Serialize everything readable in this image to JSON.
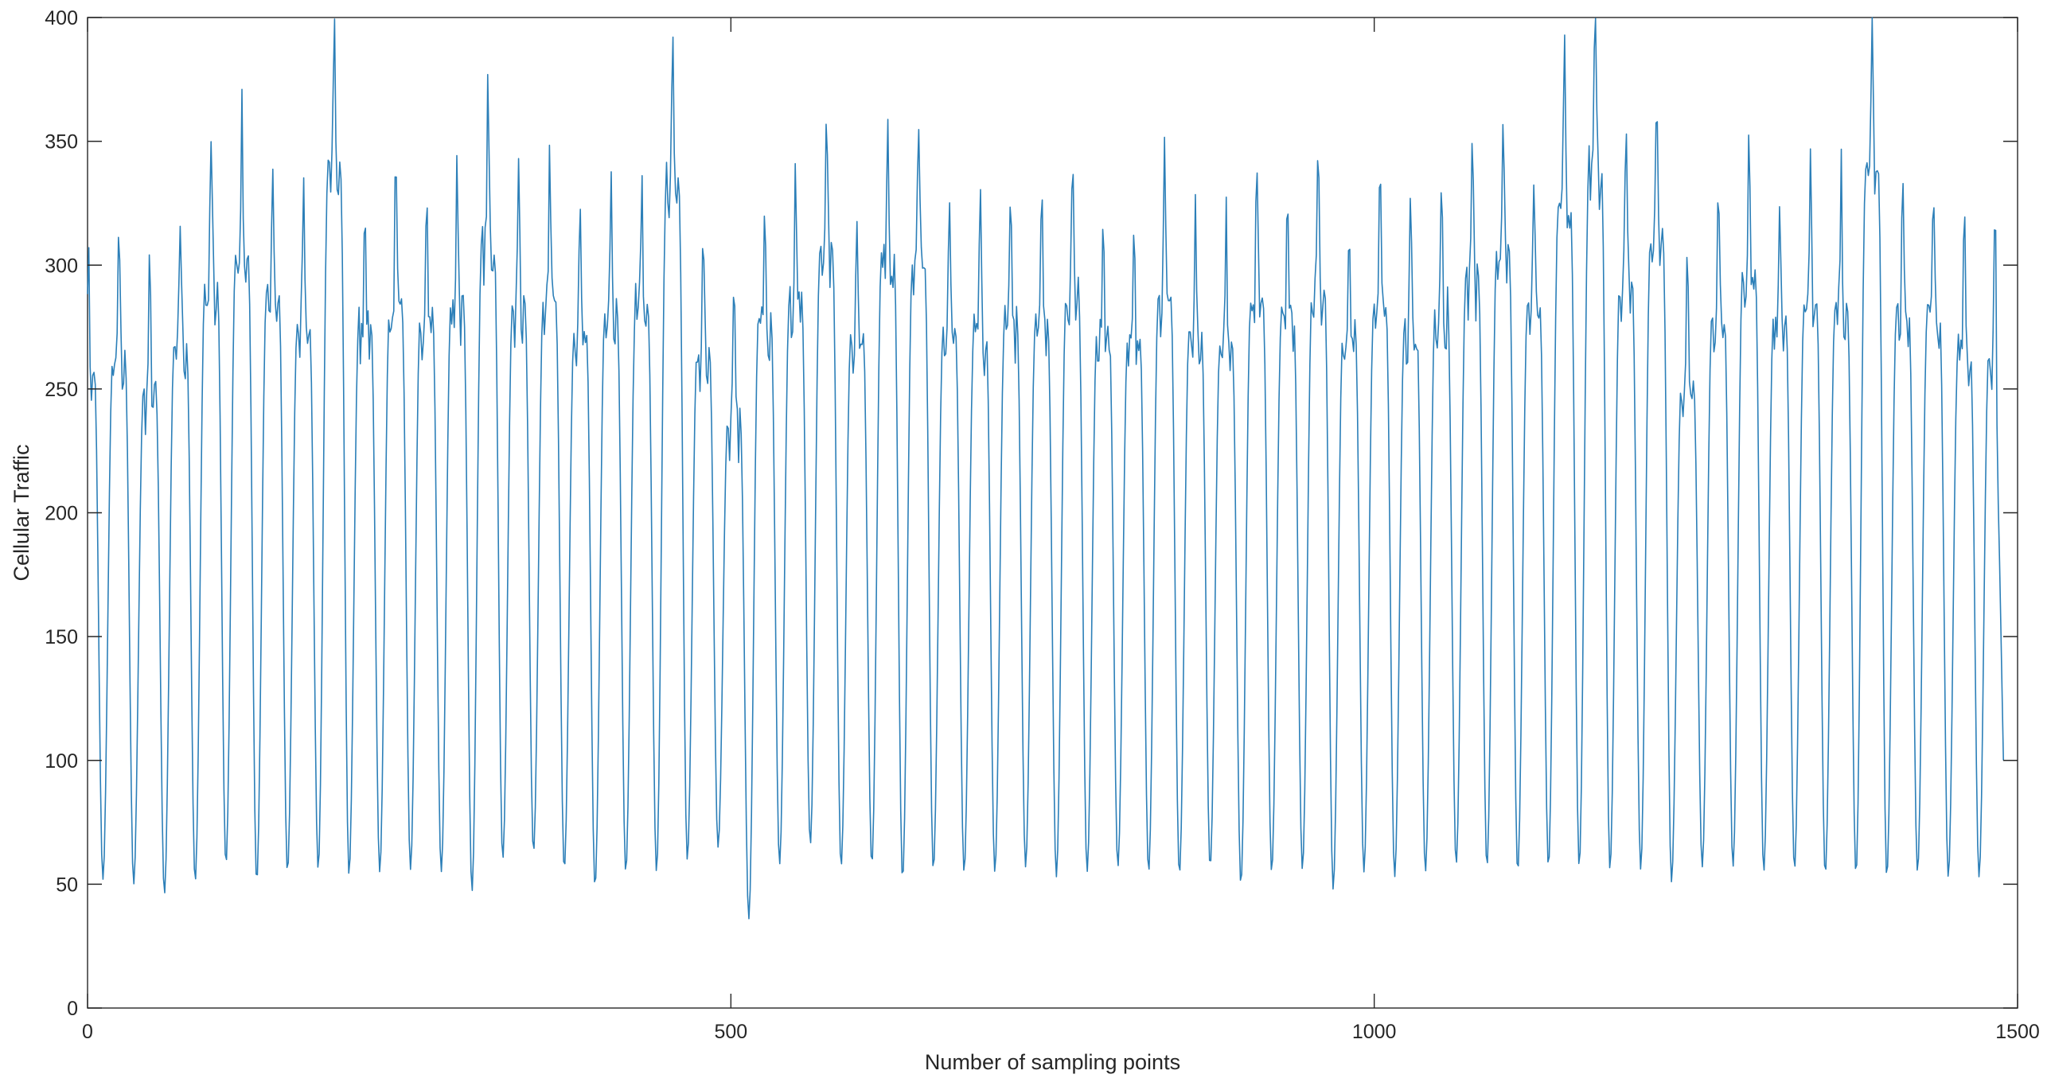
{
  "chart_data": {
    "type": "line",
    "title": "",
    "xlabel": "Number of sampling points",
    "ylabel": "Cellular Traffic",
    "xlim": [
      0,
      1500
    ],
    "ylim": [
      0,
      400
    ],
    "x_ticks": [
      0,
      500,
      1000,
      1500
    ],
    "y_ticks": [
      0,
      50,
      100,
      150,
      200,
      250,
      300,
      350,
      400
    ],
    "x_tick_labels": [
      "0",
      "500",
      "1000",
      "1500"
    ],
    "y_tick_labels": [
      "0",
      "50",
      "100",
      "150",
      "200",
      "250",
      "300",
      "350",
      "400"
    ],
    "grid": false,
    "box": true,
    "legend": "none",
    "colors": {
      "series": "#2c7fb8",
      "axis": "#262626"
    },
    "series": [
      {
        "x_start": 0,
        "x_end": 1489,
        "sampling_interval": 1,
        "cycle_period_approx": 24,
        "cycle_count_approx": 62,
        "peaks": [
          300,
          305,
          290,
          312,
          341,
          354,
          336,
          321,
          394,
          321,
          329,
          326,
          332,
          361,
          331,
          332,
          317,
          326,
          328,
          387,
          309,
          277,
          325,
          332,
          356,
          317,
          355,
          349,
          318,
          317,
          322,
          321,
          335,
          318,
          314,
          334,
          318,
          311,
          331,
          324,
          339,
          318,
          328,
          320,
          330,
          344,
          356,
          330,
          376,
          396,
          343,
          362,
          293,
          326,
          348,
          325,
          331,
          328,
          394,
          327,
          326,
          309
        ],
        "troughs": [
          55,
          52,
          50,
          46,
          51,
          58,
          51,
          55,
          56,
          54,
          55,
          56,
          55,
          47,
          60,
          63,
          56,
          49,
          55,
          55,
          60,
          65,
          36,
          58,
          66,
          57,
          58,
          52,
          56,
          55,
          55,
          57,
          53,
          55,
          57,
          55,
          54,
          57,
          50,
          55,
          56,
          48,
          55,
          53,
          55,
          58,
          57,
          55,
          57,
          57,
          56,
          56,
          51,
          57,
          57,
          55,
          56,
          54,
          54,
          53,
          55,
          53
        ],
        "last_value": 100
      }
    ]
  }
}
